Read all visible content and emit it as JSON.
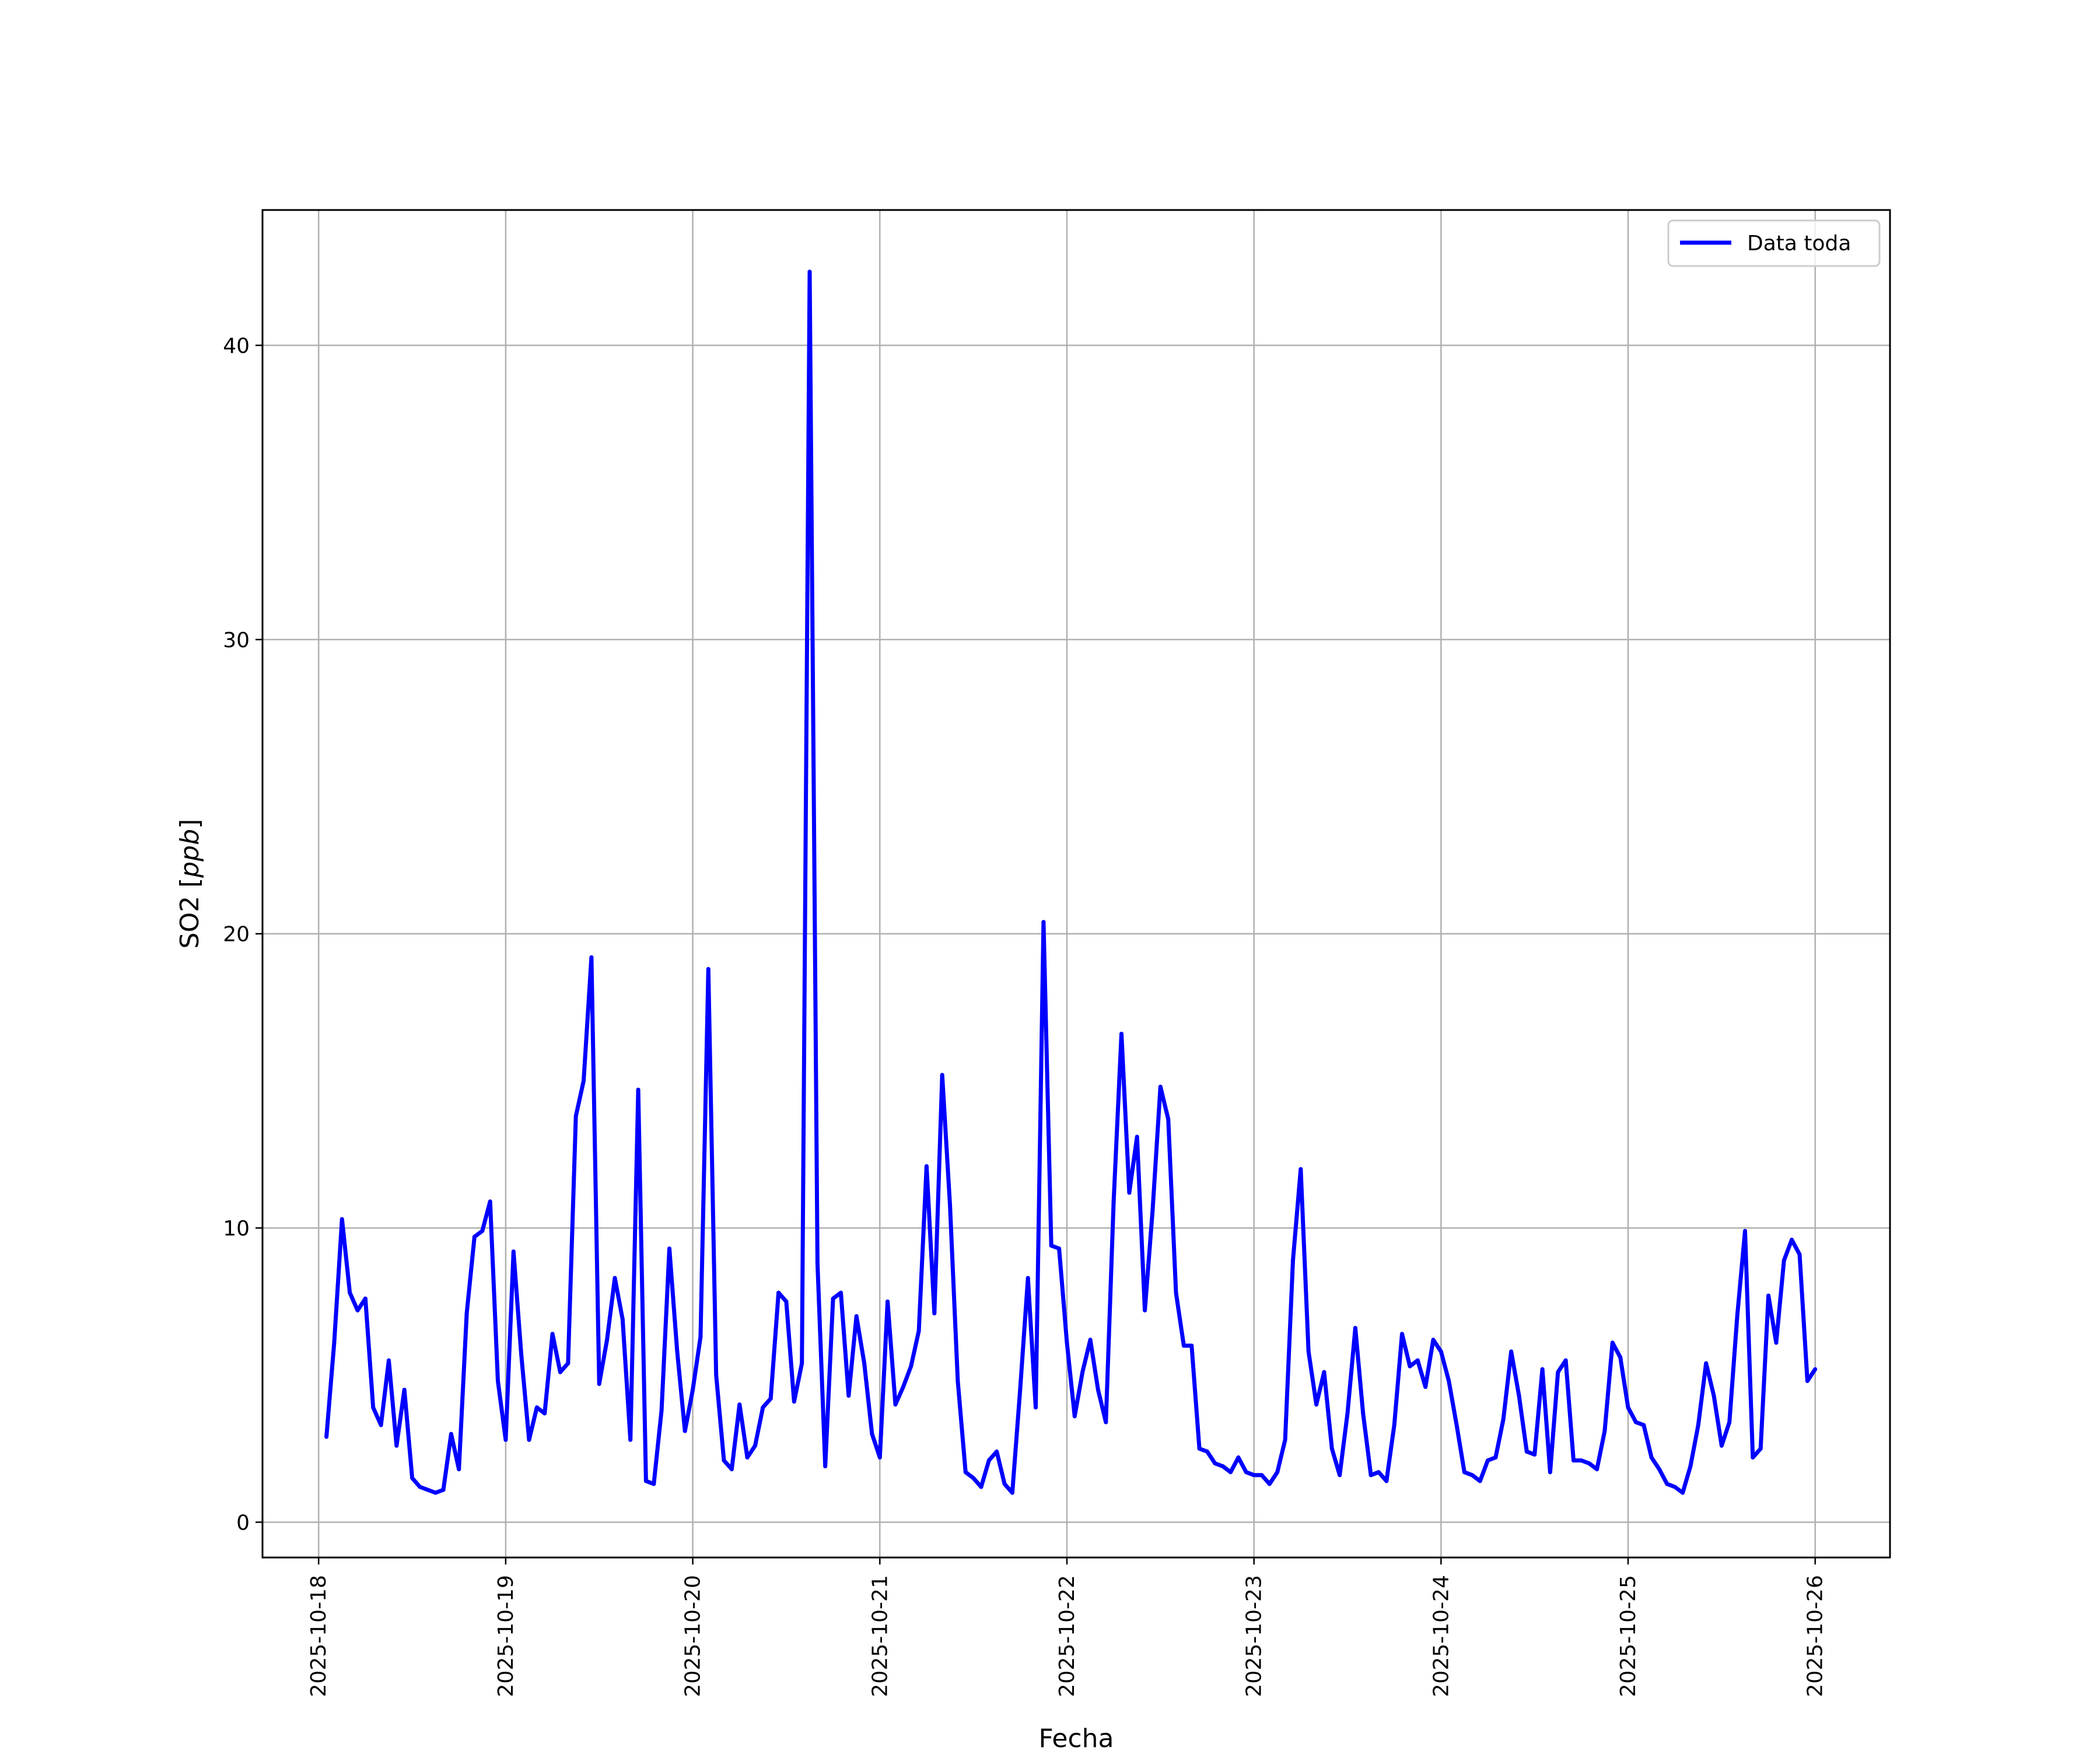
{
  "chart_data": {
    "type": "line",
    "xlabel": "Fecha",
    "ylabel": "SO2 [ppb]",
    "ylabel_parts": {
      "prefix": "SO2 [",
      "unit": "ppb",
      "suffix": "]"
    },
    "xlim": [
      "2025-10-17T16:48",
      "2025-10-26T09:36"
    ],
    "ylim": [
      -1.2,
      44.6
    ],
    "grid": true,
    "legend_position": "upper right",
    "x_ticks": [
      "2025-10-18",
      "2025-10-19",
      "2025-10-20",
      "2025-10-21",
      "2025-10-22",
      "2025-10-23",
      "2025-10-24",
      "2025-10-25",
      "2025-10-26"
    ],
    "y_ticks": [
      "0",
      "10",
      "20",
      "30",
      "40"
    ],
    "series": [
      {
        "name": "Data toda",
        "color": "#0000ff",
        "x": [
          "2025-10-18T01:00",
          "2025-10-18T02:00",
          "2025-10-18T03:00",
          "2025-10-18T04:00",
          "2025-10-18T05:00",
          "2025-10-18T06:00",
          "2025-10-18T07:00",
          "2025-10-18T08:00",
          "2025-10-18T09:00",
          "2025-10-18T10:00",
          "2025-10-18T11:00",
          "2025-10-18T12:00",
          "2025-10-18T13:00",
          "2025-10-18T14:00",
          "2025-10-18T15:00",
          "2025-10-18T16:00",
          "2025-10-18T17:00",
          "2025-10-18T18:00",
          "2025-10-18T19:00",
          "2025-10-18T20:00",
          "2025-10-18T21:00",
          "2025-10-18T22:00",
          "2025-10-18T23:00",
          "2025-10-19T00:00",
          "2025-10-19T01:00",
          "2025-10-19T02:00",
          "2025-10-19T03:00",
          "2025-10-19T04:00",
          "2025-10-19T05:00",
          "2025-10-19T06:00",
          "2025-10-19T07:00",
          "2025-10-19T08:00",
          "2025-10-19T09:00",
          "2025-10-19T10:00",
          "2025-10-19T11:00",
          "2025-10-19T12:00",
          "2025-10-19T13:00",
          "2025-10-19T14:00",
          "2025-10-19T15:00",
          "2025-10-19T16:00",
          "2025-10-19T17:00",
          "2025-10-19T18:00",
          "2025-10-19T19:00",
          "2025-10-19T20:00",
          "2025-10-19T21:00",
          "2025-10-19T22:00",
          "2025-10-19T23:00",
          "2025-10-20T00:00",
          "2025-10-20T01:00",
          "2025-10-20T02:00",
          "2025-10-20T03:00",
          "2025-10-20T04:00",
          "2025-10-20T05:00",
          "2025-10-20T06:00",
          "2025-10-20T07:00",
          "2025-10-20T08:00",
          "2025-10-20T09:00",
          "2025-10-20T10:00",
          "2025-10-20T11:00",
          "2025-10-20T12:00",
          "2025-10-20T13:00",
          "2025-10-20T14:00",
          "2025-10-20T15:00",
          "2025-10-20T16:00",
          "2025-10-20T17:00",
          "2025-10-20T18:00",
          "2025-10-20T19:00",
          "2025-10-20T20:00",
          "2025-10-20T21:00",
          "2025-10-20T22:00",
          "2025-10-20T23:00",
          "2025-10-21T00:00",
          "2025-10-21T01:00",
          "2025-10-21T02:00",
          "2025-10-21T03:00",
          "2025-10-21T04:00",
          "2025-10-21T05:00",
          "2025-10-21T06:00",
          "2025-10-21T07:00",
          "2025-10-21T08:00",
          "2025-10-21T09:00",
          "2025-10-21T10:00",
          "2025-10-21T11:00",
          "2025-10-21T12:00",
          "2025-10-21T13:00",
          "2025-10-21T14:00",
          "2025-10-21T15:00",
          "2025-10-21T16:00",
          "2025-10-21T17:00",
          "2025-10-21T18:00",
          "2025-10-21T19:00",
          "2025-10-21T20:00",
          "2025-10-21T21:00",
          "2025-10-21T22:00",
          "2025-10-21T23:00",
          "2025-10-22T00:00",
          "2025-10-22T01:00",
          "2025-10-22T02:00",
          "2025-10-22T03:00",
          "2025-10-22T04:00",
          "2025-10-22T05:00",
          "2025-10-22T06:00",
          "2025-10-22T07:00",
          "2025-10-22T08:00",
          "2025-10-22T09:00",
          "2025-10-22T10:00",
          "2025-10-22T11:00",
          "2025-10-22T12:00",
          "2025-10-22T13:00",
          "2025-10-22T14:00",
          "2025-10-22T15:00",
          "2025-10-22T16:00",
          "2025-10-22T17:00",
          "2025-10-22T18:00",
          "2025-10-22T19:00",
          "2025-10-22T20:00",
          "2025-10-22T21:00",
          "2025-10-22T22:00",
          "2025-10-22T23:00",
          "2025-10-23T00:00",
          "2025-10-23T01:00",
          "2025-10-23T02:00",
          "2025-10-23T03:00",
          "2025-10-23T04:00",
          "2025-10-23T05:00",
          "2025-10-23T06:00",
          "2025-10-23T07:00",
          "2025-10-23T08:00",
          "2025-10-23T09:00",
          "2025-10-23T10:00",
          "2025-10-23T11:00",
          "2025-10-23T12:00",
          "2025-10-23T13:00",
          "2025-10-23T14:00",
          "2025-10-23T15:00",
          "2025-10-23T16:00",
          "2025-10-23T17:00",
          "2025-10-23T18:00",
          "2025-10-23T19:00",
          "2025-10-23T20:00",
          "2025-10-23T21:00",
          "2025-10-23T22:00",
          "2025-10-23T23:00",
          "2025-10-24T00:00",
          "2025-10-24T01:00",
          "2025-10-24T02:00",
          "2025-10-24T03:00",
          "2025-10-24T04:00",
          "2025-10-24T05:00",
          "2025-10-24T06:00",
          "2025-10-24T07:00",
          "2025-10-24T08:00",
          "2025-10-24T09:00",
          "2025-10-24T10:00",
          "2025-10-24T11:00",
          "2025-10-24T12:00",
          "2025-10-24T13:00",
          "2025-10-24T14:00",
          "2025-10-24T15:00",
          "2025-10-24T16:00",
          "2025-10-24T17:00",
          "2025-10-24T18:00",
          "2025-10-24T19:00",
          "2025-10-24T20:00",
          "2025-10-24T21:00",
          "2025-10-24T22:00",
          "2025-10-24T23:00",
          "2025-10-25T00:00",
          "2025-10-25T01:00",
          "2025-10-25T02:00",
          "2025-10-25T03:00",
          "2025-10-25T04:00",
          "2025-10-25T05:00",
          "2025-10-25T06:00",
          "2025-10-25T07:00",
          "2025-10-25T08:00",
          "2025-10-25T09:00",
          "2025-10-25T10:00",
          "2025-10-25T11:00",
          "2025-10-25T12:00",
          "2025-10-25T13:00",
          "2025-10-25T14:00",
          "2025-10-25T15:00",
          "2025-10-25T16:00",
          "2025-10-25T17:00",
          "2025-10-25T18:00",
          "2025-10-25T19:00",
          "2025-10-25T20:00",
          "2025-10-25T21:00",
          "2025-10-25T22:00",
          "2025-10-25T23:00",
          "2025-10-26T00:00"
        ],
        "values": [
          2.9,
          6.1,
          10.3,
          7.8,
          7.2,
          7.6,
          3.9,
          3.3,
          5.5,
          2.6,
          4.5,
          1.5,
          1.2,
          1.1,
          1.0,
          1.1,
          3.0,
          1.8,
          7.1,
          9.7,
          9.9,
          10.9,
          4.8,
          2.8,
          9.2,
          5.7,
          2.8,
          3.9,
          3.7,
          6.4,
          5.1,
          5.4,
          13.8,
          15.0,
          19.2,
          4.7,
          6.2,
          8.3,
          6.9,
          2.8,
          14.7,
          1.4,
          1.3,
          3.8,
          9.3,
          5.8,
          3.1,
          4.5,
          6.3,
          18.8,
          5.0,
          2.1,
          1.8,
          4.0,
          2.2,
          2.6,
          3.9,
          4.2,
          7.8,
          7.5,
          4.1,
          5.4,
          42.5,
          8.8,
          1.9,
          7.6,
          7.8,
          4.3,
          7.0,
          5.4,
          3.0,
          2.2,
          7.5,
          4.0,
          4.6,
          5.3,
          6.5,
          12.1,
          7.1,
          15.2,
          10.8,
          4.8,
          1.7,
          1.5,
          1.2,
          2.1,
          2.4,
          1.3,
          1.0,
          4.5,
          8.3,
          3.9,
          20.4,
          9.4,
          9.3,
          6.1,
          3.6,
          5.1,
          6.2,
          4.5,
          3.4,
          10.9,
          16.6,
          11.2,
          13.1,
          7.2,
          10.6,
          14.8,
          13.7,
          7.8,
          6.0,
          6.0,
          2.5,
          2.4,
          2.0,
          1.9,
          1.7,
          2.2,
          1.7,
          1.6,
          1.6,
          1.3,
          1.7,
          2.8,
          8.9,
          12.0,
          5.8,
          4.0,
          5.1,
          2.5,
          1.6,
          3.7,
          6.6,
          3.7,
          1.6,
          1.7,
          1.4,
          3.3,
          6.4,
          5.3,
          5.5,
          4.6,
          6.2,
          5.8,
          4.8,
          3.3,
          1.7,
          1.6,
          1.4,
          2.1,
          2.2,
          3.5,
          5.8,
          4.3,
          2.4,
          2.3,
          5.2,
          1.7,
          5.1,
          5.5,
          2.1,
          2.1,
          2.0,
          1.8,
          3.1,
          6.1,
          5.6,
          3.9,
          3.4,
          3.3,
          2.2,
          1.8,
          1.3,
          1.2,
          1.0,
          1.9,
          3.3,
          5.4,
          4.3,
          2.6,
          3.4,
          7.0,
          9.9,
          2.2,
          2.5,
          7.7,
          6.1,
          8.9,
          9.6,
          9.1,
          4.8,
          5.2
        ]
      }
    ]
  }
}
